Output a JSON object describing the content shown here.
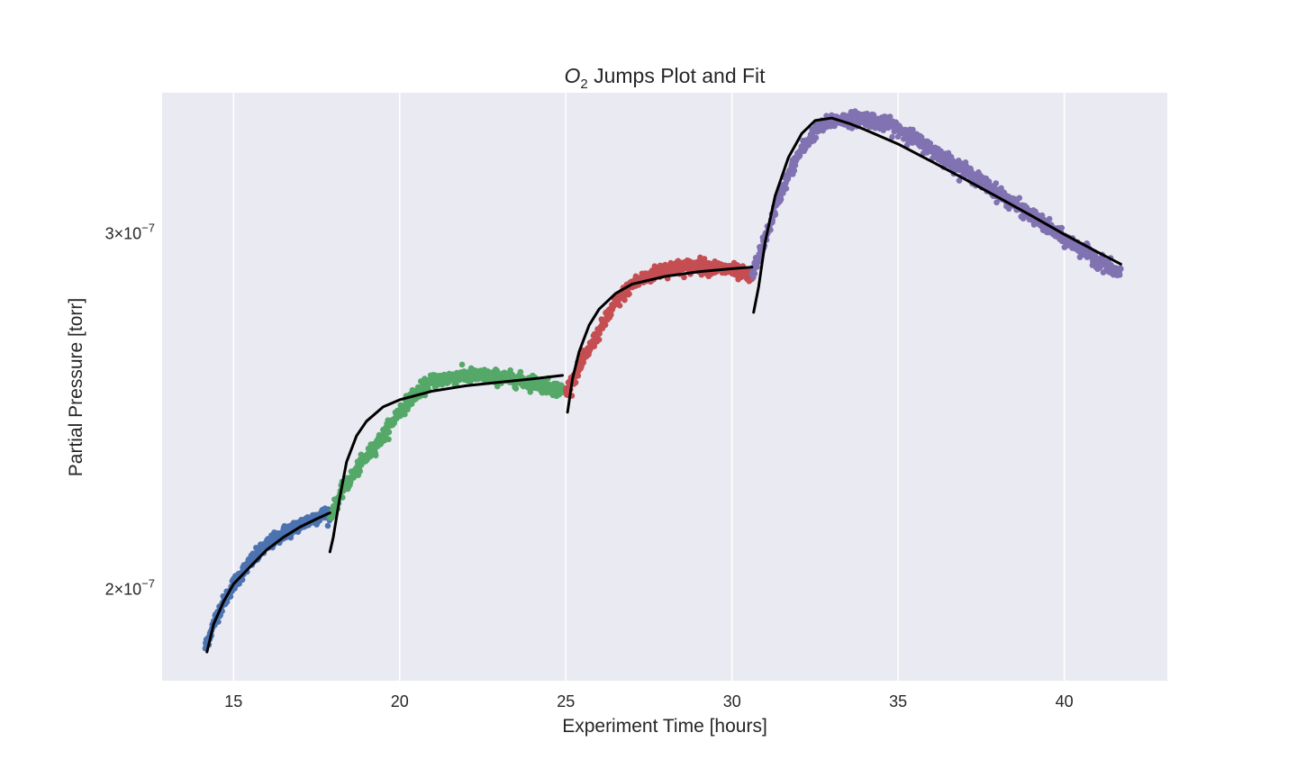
{
  "chart_data": {
    "type": "scatter",
    "title": {
      "species": "O",
      "subscript": "2",
      "rest": " Jumps Plot and Fit"
    },
    "xlabel": "Experiment Time [hours]",
    "ylabel": "Partial Pressure [torr]",
    "xlim": [
      12.85,
      43.1
    ],
    "ylim": [
      1.8e-07,
      3.52e-07
    ],
    "y_scale": "log",
    "grid": "x-axis vertical lines only",
    "legend": "none",
    "x_ticks": [
      15,
      20,
      25,
      30,
      35,
      40
    ],
    "x_tick_labels": [
      "15",
      "20",
      "25",
      "30",
      "35",
      "40"
    ],
    "y_ticks": [
      {
        "value": 3e-07,
        "mantissa": "3",
        "exponent": "−7"
      },
      {
        "value": 2e-07,
        "mantissa": "2",
        "exponent": "−7"
      }
    ],
    "series": [
      {
        "color": "#4c72b0",
        "approx_points": [
          [
            14.15,
            1.87e-07
          ],
          [
            14.5,
            1.94e-07
          ],
          [
            15.0,
            2.01e-07
          ],
          [
            15.5,
            2.06e-07
          ],
          [
            16.0,
            2.1e-07
          ],
          [
            16.5,
            2.13e-07
          ],
          [
            17.0,
            2.15e-07
          ],
          [
            17.5,
            2.17e-07
          ],
          [
            17.9,
            2.18e-07
          ]
        ],
        "noise": 0.004
      },
      {
        "color": "#55a868",
        "approx_points": [
          [
            17.9,
            2.17e-07
          ],
          [
            18.3,
            2.24e-07
          ],
          [
            18.8,
            2.3e-07
          ],
          [
            19.5,
            2.38e-07
          ],
          [
            20.0,
            2.45e-07
          ],
          [
            20.5,
            2.5e-07
          ],
          [
            21.0,
            2.535e-07
          ],
          [
            22.0,
            2.55e-07
          ],
          [
            23.0,
            2.545e-07
          ],
          [
            24.0,
            2.53e-07
          ],
          [
            24.95,
            2.505e-07
          ]
        ],
        "noise": 0.004
      },
      {
        "color": "#c44e52",
        "approx_points": [
          [
            25.0,
            2.5e-07
          ],
          [
            25.5,
            2.59e-07
          ],
          [
            26.0,
            2.68e-07
          ],
          [
            26.5,
            2.77e-07
          ],
          [
            27.0,
            2.83e-07
          ],
          [
            28.0,
            2.88e-07
          ],
          [
            29.0,
            2.89e-07
          ],
          [
            30.0,
            2.875e-07
          ],
          [
            30.6,
            2.85e-07
          ]
        ],
        "noise": 0.004
      },
      {
        "color": "#8172b2",
        "approx_points": [
          [
            30.6,
            2.86e-07
          ],
          [
            31.0,
            2.98e-07
          ],
          [
            31.5,
            3.15e-07
          ],
          [
            32.0,
            3.28e-07
          ],
          [
            32.5,
            3.37e-07
          ],
          [
            33.0,
            3.41e-07
          ],
          [
            34.0,
            3.42e-07
          ],
          [
            35.0,
            3.38e-07
          ],
          [
            36.0,
            3.3e-07
          ],
          [
            37.0,
            3.22e-07
          ],
          [
            38.0,
            3.14e-07
          ],
          [
            39.0,
            3.06e-07
          ],
          [
            40.0,
            2.98e-07
          ],
          [
            41.0,
            2.91e-07
          ],
          [
            41.7,
            2.86e-07
          ]
        ],
        "noise": 0.004
      }
    ],
    "fits": [
      {
        "color": "#000000",
        "points": [
          [
            14.2,
            1.86e-07
          ],
          [
            14.4,
            1.92e-07
          ],
          [
            14.7,
            1.97e-07
          ],
          [
            15.0,
            2.01e-07
          ],
          [
            15.5,
            2.05e-07
          ],
          [
            16.0,
            2.09e-07
          ],
          [
            16.5,
            2.12e-07
          ],
          [
            17.0,
            2.145e-07
          ],
          [
            17.5,
            2.165e-07
          ],
          [
            17.9,
            2.18e-07
          ]
        ]
      },
      {
        "color": "#000000",
        "points": [
          [
            17.9,
            2.085e-07
          ],
          [
            18.0,
            2.12e-07
          ],
          [
            18.2,
            2.22e-07
          ],
          [
            18.4,
            2.31e-07
          ],
          [
            18.7,
            2.38e-07
          ],
          [
            19.0,
            2.42e-07
          ],
          [
            19.5,
            2.46e-07
          ],
          [
            20.0,
            2.48e-07
          ],
          [
            21.0,
            2.505e-07
          ],
          [
            22.0,
            2.52e-07
          ],
          [
            23.0,
            2.53e-07
          ],
          [
            24.0,
            2.54e-07
          ],
          [
            24.9,
            2.55e-07
          ]
        ]
      },
      {
        "color": "#000000",
        "points": [
          [
            25.05,
            2.445e-07
          ],
          [
            25.2,
            2.54e-07
          ],
          [
            25.4,
            2.62e-07
          ],
          [
            25.7,
            2.7e-07
          ],
          [
            26.0,
            2.75e-07
          ],
          [
            26.5,
            2.8e-07
          ],
          [
            27.0,
            2.83e-07
          ],
          [
            28.0,
            2.855e-07
          ],
          [
            29.0,
            2.87e-07
          ],
          [
            30.0,
            2.88e-07
          ],
          [
            30.6,
            2.885e-07
          ]
        ]
      },
      {
        "color": "#000000",
        "points": [
          [
            30.65,
            2.74e-07
          ],
          [
            30.8,
            2.82e-07
          ],
          [
            31.0,
            2.97e-07
          ],
          [
            31.3,
            3.13e-07
          ],
          [
            31.7,
            3.27e-07
          ],
          [
            32.1,
            3.36e-07
          ],
          [
            32.5,
            3.41e-07
          ],
          [
            33.0,
            3.42e-07
          ],
          [
            33.5,
            3.4e-07
          ],
          [
            34.0,
            3.375e-07
          ],
          [
            35.0,
            3.32e-07
          ],
          [
            36.0,
            3.255e-07
          ],
          [
            37.0,
            3.19e-07
          ],
          [
            38.0,
            3.125e-07
          ],
          [
            39.0,
            3.06e-07
          ],
          [
            40.0,
            2.995e-07
          ],
          [
            41.0,
            2.935e-07
          ],
          [
            41.7,
            2.895e-07
          ]
        ]
      }
    ]
  }
}
